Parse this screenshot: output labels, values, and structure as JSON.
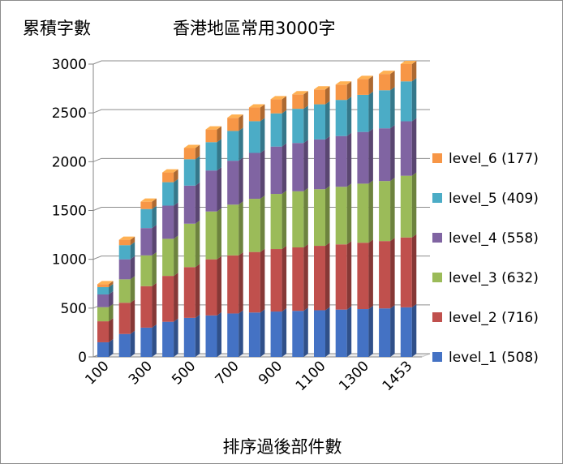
{
  "chart_data": {
    "type": "bar",
    "stacked": true,
    "style": "3d-stacked-column",
    "title": "累積字數",
    "subtitle": "香港地區常用3000字",
    "xlabel": "排序過後部件數",
    "ylabel": "",
    "ylim": [
      0,
      3000
    ],
    "yticks": [
      0,
      500,
      1000,
      1500,
      2000,
      2500,
      3000
    ],
    "grid": true,
    "legend_position": "right",
    "categories": [
      "100",
      "200",
      "300",
      "400",
      "500",
      "600",
      "700",
      "800",
      "900",
      "1000",
      "1100",
      "1200",
      "1300",
      "1400",
      "1453"
    ],
    "x_tick_labels": [
      "100",
      "300",
      "500",
      "700",
      "900",
      "1100",
      "1300",
      "1453"
    ],
    "x_tick_label_indices": [
      0,
      2,
      4,
      6,
      8,
      10,
      12,
      14
    ],
    "series": [
      {
        "name": "level_1 (508)",
        "color": "#4472c4",
        "values": [
          150,
          235,
          300,
          360,
          400,
          425,
          445,
          455,
          465,
          472,
          478,
          485,
          490,
          497,
          508
        ]
      },
      {
        "name": "level_2 (716)",
        "color": "#c0504d",
        "values": [
          215,
          320,
          425,
          470,
          520,
          575,
          595,
          620,
          640,
          650,
          660,
          668,
          680,
          690,
          716
        ]
      },
      {
        "name": "level_3 (632)",
        "color": "#9bbb59",
        "values": [
          145,
          240,
          315,
          380,
          445,
          490,
          520,
          545,
          565,
          575,
          580,
          590,
          605,
          615,
          632
        ]
      },
      {
        "name": "level_4 (558)",
        "color": "#8064a2",
        "values": [
          130,
          205,
          280,
          340,
          390,
          420,
          450,
          470,
          485,
          495,
          510,
          520,
          530,
          540,
          558
        ]
      },
      {
        "name": "level_5 (409)",
        "color": "#4bacc6",
        "values": [
          75,
          145,
          195,
          240,
          270,
          290,
          305,
          325,
          340,
          350,
          360,
          370,
          380,
          390,
          409
        ]
      },
      {
        "name": "level_6 (177)",
        "color": "#f79646",
        "values": [
          30,
          55,
          75,
          100,
          115,
          130,
          135,
          140,
          145,
          148,
          152,
          157,
          162,
          167,
          177
        ]
      }
    ]
  }
}
